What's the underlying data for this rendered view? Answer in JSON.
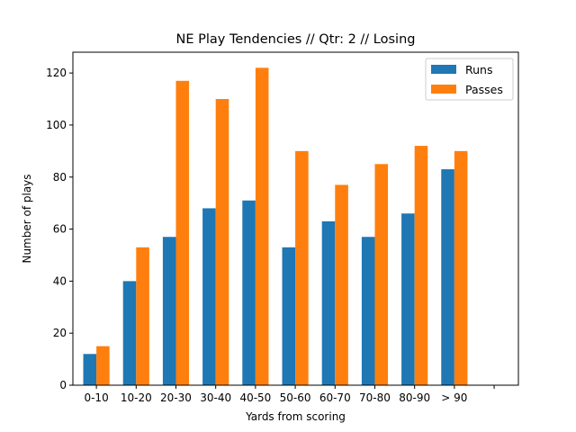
{
  "chart_data": {
    "type": "bar",
    "title": "NE Play Tendencies // Qtr: 2 // Losing",
    "xlabel": "Yards from scoring",
    "ylabel": "Number of plays",
    "categories": [
      "0-10",
      "10-20",
      "20-30",
      "30-40",
      "40-50",
      "50-60",
      "60-70",
      "70-80",
      "80-90",
      "> 90"
    ],
    "series": [
      {
        "name": "Runs",
        "color": "#1f77b4",
        "values": [
          12,
          40,
          57,
          68,
          71,
          53,
          63,
          57,
          66,
          83
        ]
      },
      {
        "name": "Passes",
        "color": "#ff7f0e",
        "values": [
          15,
          53,
          117,
          110,
          122,
          90,
          77,
          85,
          92,
          90
        ]
      }
    ],
    "ylim": [
      0,
      128
    ],
    "yticks": [
      0,
      20,
      40,
      60,
      80,
      100,
      120
    ],
    "legend_position": "top-right",
    "grid": false
  }
}
